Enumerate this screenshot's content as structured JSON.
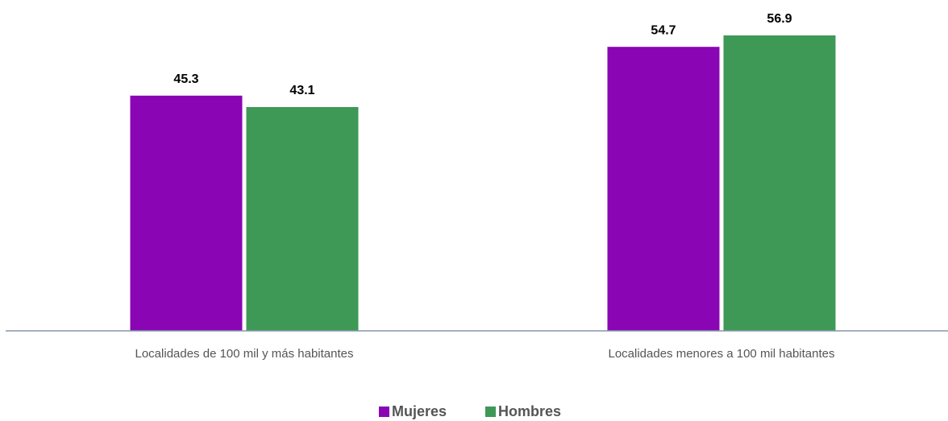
{
  "chart_data": {
    "type": "bar",
    "categories": [
      "Localidades de 100 mil y más habitantes",
      "Localidades menores a 100 mil habitantes"
    ],
    "series": [
      {
        "name": "Mujeres",
        "color": "#8a06b4",
        "values": [
          45.3,
          54.7
        ]
      },
      {
        "name": "Hombres",
        "color": "#3e9856",
        "values": [
          43.1,
          56.9
        ]
      }
    ],
    "ylim": [
      0,
      60
    ],
    "legend": "bottom"
  }
}
